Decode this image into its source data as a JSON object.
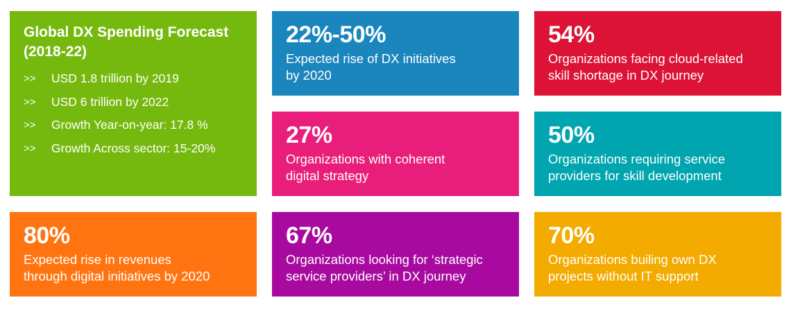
{
  "forecast": {
    "title": "Global DX Spending Forecast (2018-22)",
    "bullet_marker": ">>",
    "items": [
      "USD 1.8 trillion by 2019",
      "USD 6 trillion by 2022",
      "Growth Year-on-year: 17.8 %",
      "Growth Across sector: 15-20%"
    ],
    "color": "#76b90e"
  },
  "tiles": [
    {
      "stat": "22%-50%",
      "desc": "Expected rise of DX initiatives\nby 2020",
      "color": "#1b86bd"
    },
    {
      "stat": "54%",
      "desc": "Organizations facing cloud-related\nskill shortage in DX journey",
      "color": "#dc1236"
    },
    {
      "stat": "27%",
      "desc": "Organizations with coherent\ndigital strategy",
      "color": "#e91e7a"
    },
    {
      "stat": "50%",
      "desc": "Organizations requiring service\nproviders for skill development",
      "color": "#00a5b0"
    },
    {
      "stat": "80%",
      "desc": "Expected rise in revenues\nthrough digital initiatives by 2020",
      "color": "#ff7410"
    },
    {
      "stat": "67%",
      "desc": "Organizations looking for ‘strategic\nservice providers’ in DX journey",
      "color": "#a80aa0"
    },
    {
      "stat": "70%",
      "desc": "Organizations builing own DX\nprojects without IT support",
      "color": "#f3ab00"
    }
  ]
}
